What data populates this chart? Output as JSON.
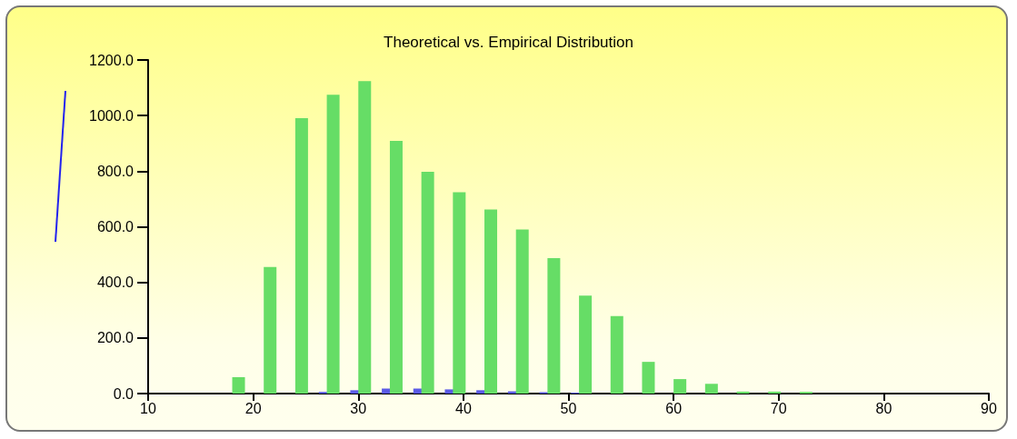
{
  "chart_data": {
    "type": "bar",
    "title": "Theoretical vs. Empirical Distribution",
    "x": [
      19.1,
      22.1,
      25.1,
      28.1,
      31.1,
      34.1,
      37.1,
      40.1,
      43.1,
      46.1,
      49.1,
      52.1,
      55.1,
      58.1,
      61.1,
      64.1,
      67.1,
      70.1,
      73.1
    ],
    "series": [
      {
        "color": "#66dd66",
        "values": [
          59,
          455,
          991,
          1075,
          1124,
          909,
          798,
          724,
          662,
          590,
          487,
          352,
          279,
          114,
          52,
          35,
          7,
          7,
          6
        ]
      },
      {
        "color": "#5a5ae6",
        "x": [
          26.0,
          29.0,
          32.0,
          35.0,
          38.0,
          41.0,
          44.0,
          47.0,
          50.0
        ],
        "values": [
          6,
          12,
          18,
          18,
          15,
          12,
          8,
          5,
          3
        ]
      }
    ],
    "xlim": [
      10,
      90
    ],
    "xticks": [
      10,
      20,
      30,
      40,
      50,
      60,
      70,
      80,
      90
    ],
    "ylim": [
      0,
      1200
    ],
    "yticks": [
      {
        "value": 0,
        "label": "0.0"
      },
      {
        "value": 200,
        "label": "200.0"
      },
      {
        "value": 400,
        "label": "400.0"
      },
      {
        "value": 600,
        "label": "600.0"
      },
      {
        "value": 800,
        "label": "800.0"
      },
      {
        "value": 1000,
        "label": "1000.0"
      },
      {
        "value": 1200,
        "label": "1200.0"
      }
    ],
    "grid": false
  }
}
